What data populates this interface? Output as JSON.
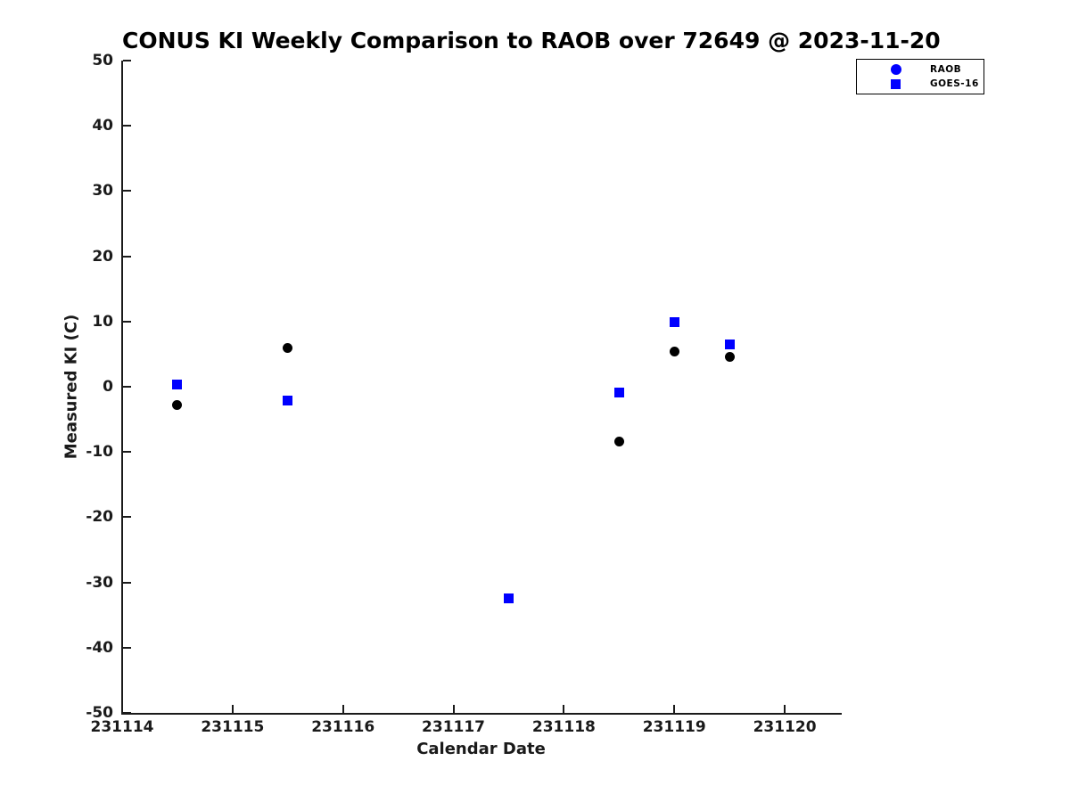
{
  "page": {
    "background": "#ffffff",
    "axis_color": "#1a1a1a"
  },
  "chart_data": {
    "type": "scatter",
    "title": "CONUS KI Weekly Comparison to RAOB over 72649 @ 2023-11-20",
    "xlabel": "Calendar Date",
    "ylabel": "Measured KI (C)",
    "xlim": [
      231114,
      231120.5
    ],
    "ylim": [
      -50,
      50
    ],
    "grid": false,
    "legend_position": "top-right-outside",
    "x_ticks": [
      {
        "value": 231114,
        "label": "231114"
      },
      {
        "value": 231115,
        "label": "231115"
      },
      {
        "value": 231116,
        "label": "231116"
      },
      {
        "value": 231117,
        "label": "231117"
      },
      {
        "value": 231118,
        "label": "231118"
      },
      {
        "value": 231119,
        "label": "231119"
      },
      {
        "value": 231120,
        "label": "231120"
      }
    ],
    "y_ticks": [
      {
        "value": 50,
        "label": "50"
      },
      {
        "value": 40,
        "label": "40"
      },
      {
        "value": 30,
        "label": "30"
      },
      {
        "value": 20,
        "label": "20"
      },
      {
        "value": 10,
        "label": "10"
      },
      {
        "value": 0,
        "label": "0"
      },
      {
        "value": -10,
        "label": "-10"
      },
      {
        "value": -20,
        "label": "-20"
      },
      {
        "value": -30,
        "label": "-30"
      },
      {
        "value": -40,
        "label": "-40"
      },
      {
        "value": -50,
        "label": "-50"
      }
    ],
    "series": [
      {
        "name": "RAOB",
        "marker": "circle",
        "marker_color": "#000000",
        "legend_marker_color": "#0000ff",
        "points": [
          [
            231114.5,
            -2.8
          ],
          [
            231115.5,
            5.9
          ],
          [
            231118.5,
            -8.4
          ],
          [
            231119.0,
            5.4
          ],
          [
            231119.5,
            4.6
          ]
        ]
      },
      {
        "name": "GOES-16",
        "marker": "square",
        "marker_color": "#0000ff",
        "legend_marker_color": "#0000ff",
        "points": [
          [
            231114.5,
            0.3
          ],
          [
            231115.5,
            -2.1
          ],
          [
            231117.5,
            -32.4
          ],
          [
            231118.5,
            -0.9
          ],
          [
            231119.0,
            9.9
          ],
          [
            231119.5,
            6.5
          ]
        ]
      }
    ]
  }
}
